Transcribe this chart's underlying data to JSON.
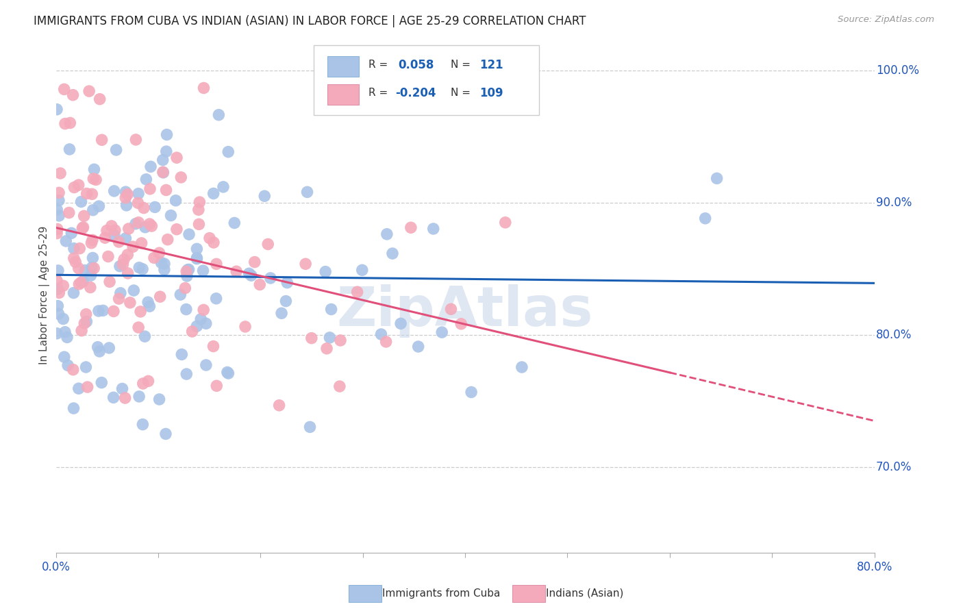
{
  "title": "IMMIGRANTS FROM CUBA VS INDIAN (ASIAN) IN LABOR FORCE | AGE 25-29 CORRELATION CHART",
  "source": "Source: ZipAtlas.com",
  "ylabel": "In Labor Force | Age 25-29",
  "cuba_color": "#aac4e8",
  "india_color": "#f4aabb",
  "cuba_line_color": "#1a5fb4",
  "india_line_color": "#e0507a",
  "cuba_R": 0.058,
  "cuba_N": 121,
  "india_R": -0.204,
  "india_N": 109,
  "xmin": 0.0,
  "xmax": 0.8,
  "ymin": 0.635,
  "ymax": 1.025
}
